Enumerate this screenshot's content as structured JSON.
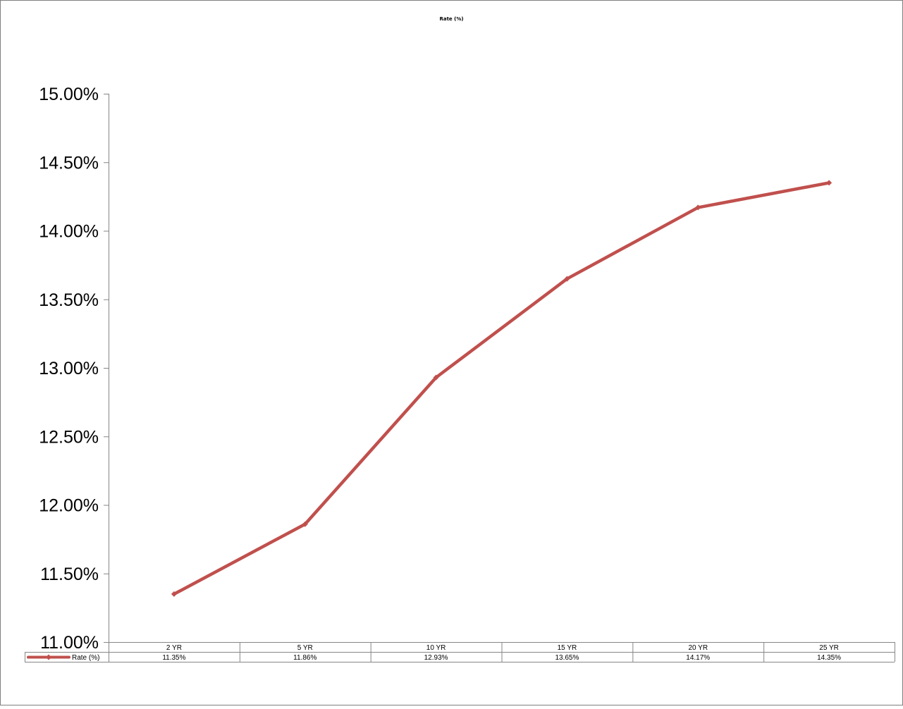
{
  "chart_data": {
    "type": "line",
    "title": "Rate (%)",
    "xlabel": "",
    "ylabel": "",
    "categories": [
      "2 YR",
      "5 YR",
      "10 YR",
      "15 YR",
      "20 YR",
      "25 YR"
    ],
    "series": [
      {
        "name": "Rate (%)",
        "values": [
          11.35,
          11.86,
          12.93,
          13.65,
          14.17,
          14.35
        ],
        "labels": [
          "11.35%",
          "11.86%",
          "12.93%",
          "13.65%",
          "14.17%",
          "14.35%"
        ],
        "color": "#C0504D",
        "marker": "diamond"
      }
    ],
    "ylim": [
      11.0,
      15.0
    ],
    "ytick_labels": [
      "11.00%",
      "11.50%",
      "12.00%",
      "12.50%",
      "13.00%",
      "13.50%",
      "14.00%",
      "14.50%",
      "15.00%"
    ],
    "grid": false,
    "legend": "data-table",
    "data_table": true
  }
}
